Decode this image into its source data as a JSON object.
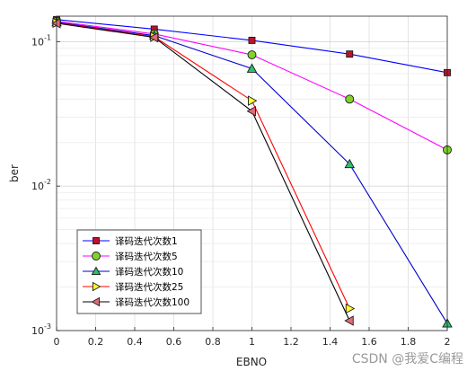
{
  "chart_data": {
    "type": "line",
    "xlabel": "EBNO",
    "ylabel": "ber",
    "xlim": [
      0,
      2
    ],
    "ylim": [
      0.001,
      0.15
    ],
    "y_scale": "log",
    "grid": true,
    "x_ticks": [
      "0",
      "0.2",
      "0.4",
      "0.6",
      "0.8",
      "1",
      "1.2",
      "1.4",
      "1.6",
      "1.8",
      "2"
    ],
    "legend_position": "bottom-left",
    "series": [
      {
        "name": "译码迭代次数1",
        "color": "#0000ff",
        "marker": "square",
        "marker_fill": "#c0102a",
        "x": [
          0,
          0.5,
          1,
          1.5,
          2
        ],
        "y": [
          0.142,
          0.122,
          0.102,
          0.082,
          0.061
        ]
      },
      {
        "name": "译码迭代次数5",
        "color": "#ff00ff",
        "marker": "circle",
        "marker_fill": "#7fd32a",
        "x": [
          0,
          0.5,
          1,
          1.5,
          2
        ],
        "y": [
          0.138,
          0.113,
          0.081,
          0.04,
          0.0178
        ]
      },
      {
        "name": "译码迭代次数10",
        "color": "#0000cc",
        "marker": "triangle-up",
        "marker_fill": "#2fbf6a",
        "x": [
          0,
          0.5,
          1,
          1.5,
          2
        ],
        "y": [
          0.136,
          0.11,
          0.065,
          0.0142,
          0.00112
        ]
      },
      {
        "name": "译码迭代次数25",
        "color": "#ff0000",
        "marker": "triangle-right",
        "marker_fill": "#ffff33",
        "x": [
          0,
          0.5,
          1,
          1.5
        ],
        "y": [
          0.135,
          0.108,
          0.039,
          0.00142
        ]
      },
      {
        "name": "译码迭代次数100",
        "color": "#000000",
        "marker": "triangle-left",
        "marker_fill": "#e06a7a",
        "x": [
          0,
          0.5,
          1,
          1.5
        ],
        "y": [
          0.134,
          0.107,
          0.033,
          0.00117
        ]
      }
    ]
  },
  "watermark": "CSDN @我爱C编程"
}
